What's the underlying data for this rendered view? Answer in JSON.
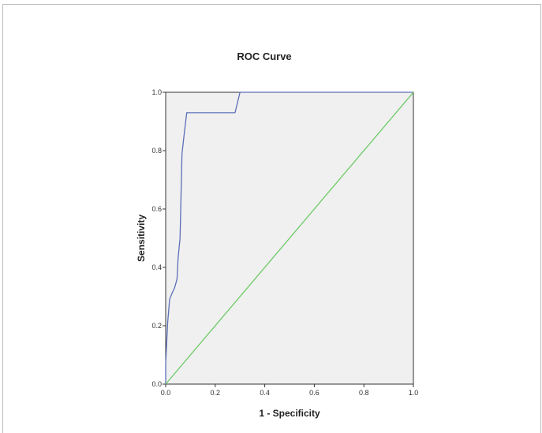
{
  "chart_data": {
    "type": "line",
    "title": "ROC Curve",
    "xlabel": "1 - Specificity",
    "ylabel": "Sensitivity",
    "xlim": [
      0.0,
      1.0
    ],
    "ylim": [
      0.0,
      1.0
    ],
    "xticks": [
      "0.0",
      "0.2",
      "0.4",
      "0.6",
      "0.8",
      "1.0"
    ],
    "yticks": [
      "0.0",
      "0.2",
      "0.4",
      "0.6",
      "0.8",
      "1.0"
    ],
    "grid": false,
    "background_color": "#f0f0f0",
    "series": [
      {
        "color": "#5b6fb7",
        "x": [
          0.0,
          0.0,
          0.008,
          0.016,
          0.025,
          0.036,
          0.046,
          0.05,
          0.058,
          0.066,
          0.075,
          0.085,
          0.1,
          0.26,
          0.28,
          0.3,
          1.0
        ],
        "y": [
          0.0,
          0.07,
          0.21,
          0.29,
          0.31,
          0.33,
          0.36,
          0.43,
          0.5,
          0.79,
          0.86,
          0.93,
          0.93,
          0.93,
          0.93,
          1.0,
          1.0
        ]
      },
      {
        "color": "#6ccb66",
        "x": [
          0.0,
          1.0
        ],
        "y": [
          0.0,
          1.0
        ]
      }
    ]
  }
}
